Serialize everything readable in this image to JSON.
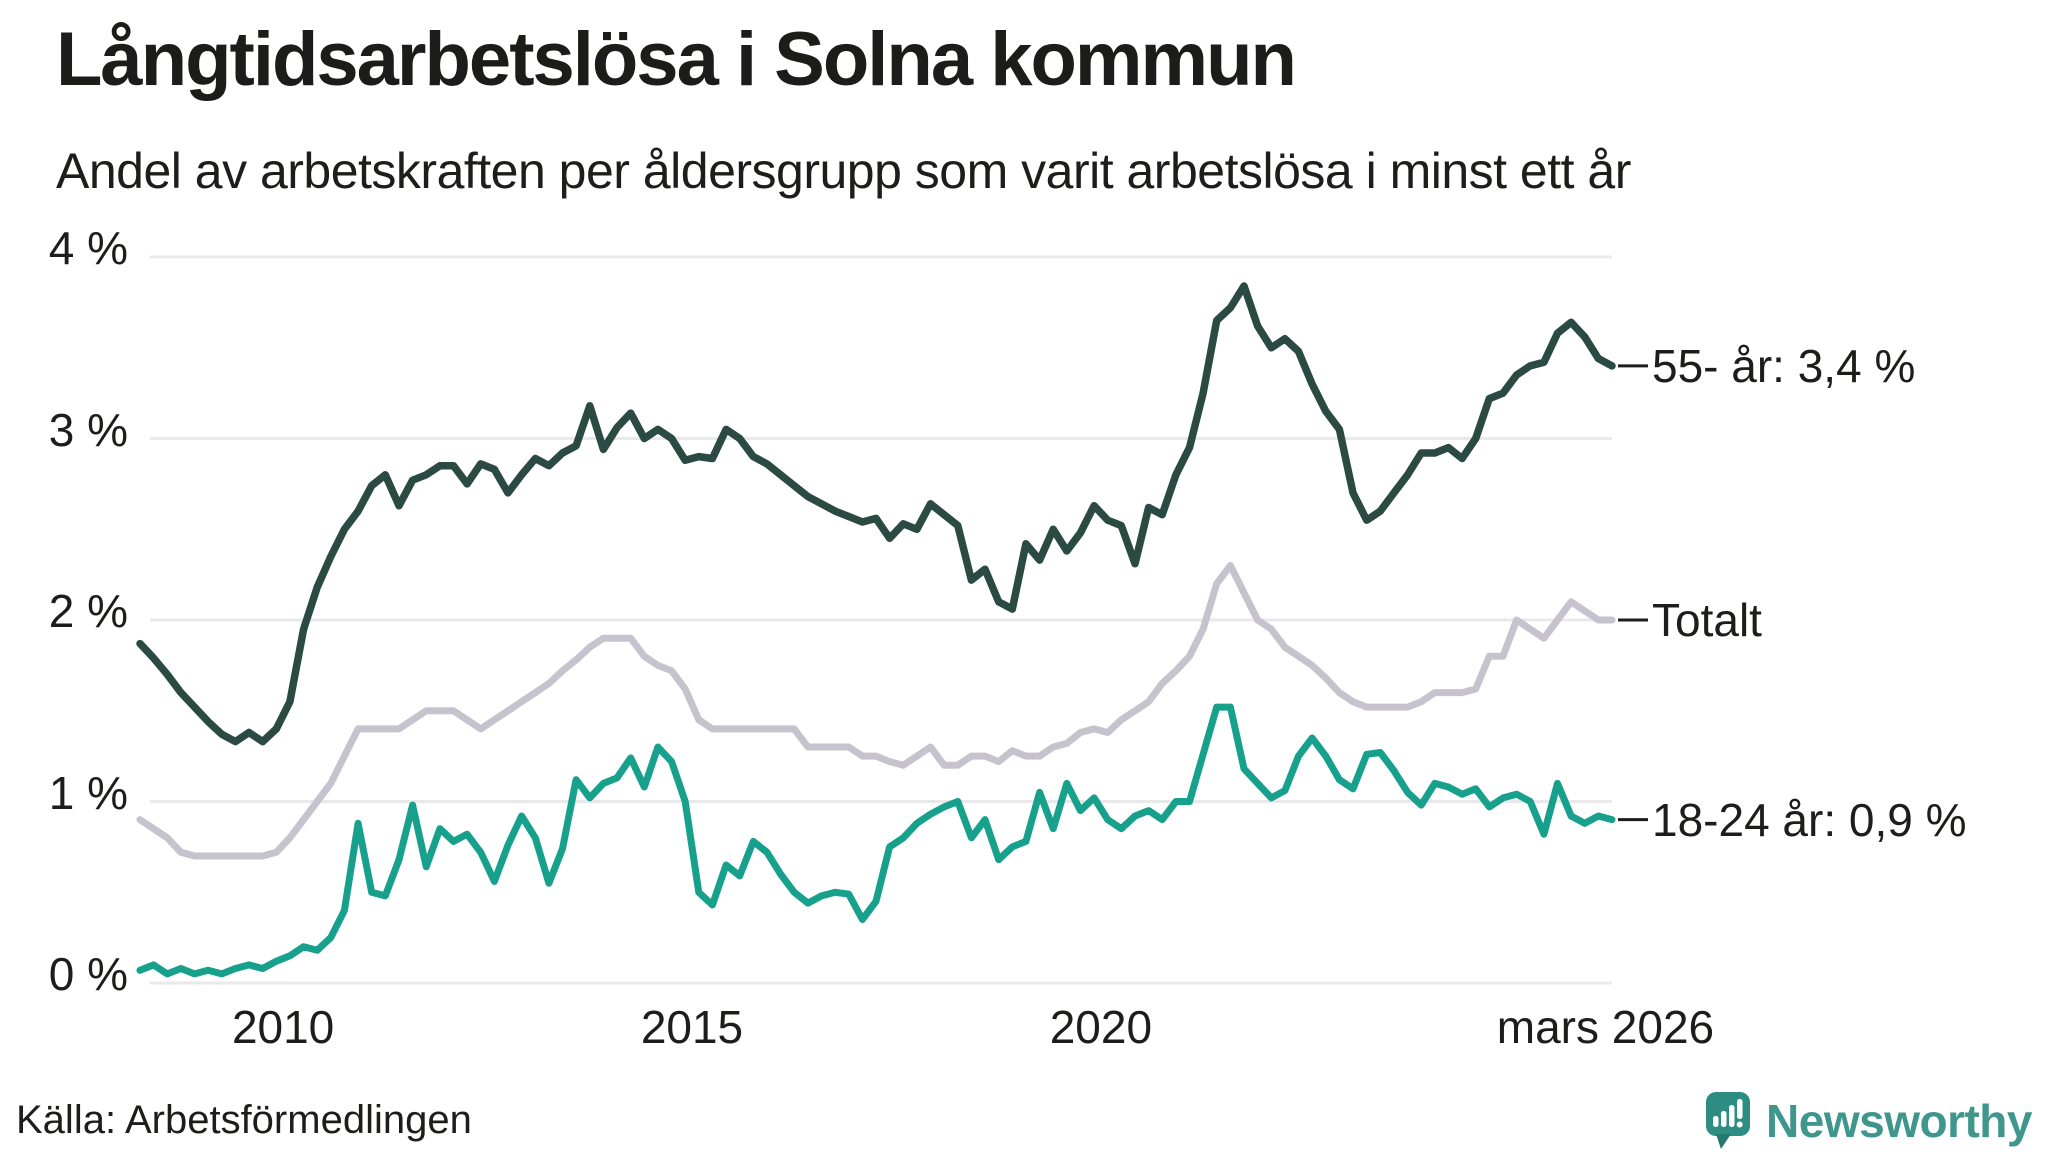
{
  "header": {
    "title": "Långtidsarbetslösa i Solna kommun",
    "subtitle": "Andel av arbetskraften per åldersgrupp som varit arbetslösa i minst ett år"
  },
  "chart_data": {
    "type": "line",
    "title": "Långtidsarbetslösa i Solna kommun",
    "subtitle": "Andel av arbetskraften per åldersgrupp som varit arbetslösa i minst ett år",
    "xlabel": "",
    "ylabel": "",
    "ylim": [
      0,
      4
    ],
    "grid": "horizontal",
    "legend_position": "right-end-labels",
    "x_start": 2008.25,
    "x_step": 0.166667,
    "x_ticks": [
      {
        "year": 2010,
        "label": "2010"
      },
      {
        "year": 2015,
        "label": "2015"
      },
      {
        "year": 2020,
        "label": "2020"
      },
      {
        "year": 2026.17,
        "label": "mars 2026"
      }
    ],
    "y_ticks": [
      {
        "value": 0,
        "label": "0 %"
      },
      {
        "value": 1,
        "label": "1 %"
      },
      {
        "value": 2,
        "label": "2 %"
      },
      {
        "value": 3,
        "label": "3 %"
      },
      {
        "value": 4,
        "label": "4 %"
      }
    ],
    "series": [
      {
        "name": "Totalt",
        "key": "totalt",
        "color": "#c6c3ce",
        "line_width": 7,
        "end_label": "Totalt",
        "end_value": 2.0,
        "values": [
          0.9,
          0.85,
          0.8,
          0.72,
          0.7,
          0.7,
          0.7,
          0.7,
          0.7,
          0.7,
          0.72,
          0.8,
          0.9,
          1.0,
          1.1,
          1.25,
          1.4,
          1.4,
          1.4,
          1.4,
          1.45,
          1.5,
          1.5,
          1.5,
          1.45,
          1.4,
          1.45,
          1.5,
          1.55,
          1.6,
          1.65,
          1.72,
          1.78,
          1.85,
          1.9,
          1.9,
          1.9,
          1.8,
          1.75,
          1.72,
          1.62,
          1.45,
          1.4,
          1.4,
          1.4,
          1.4,
          1.4,
          1.4,
          1.4,
          1.3,
          1.3,
          1.3,
          1.3,
          1.25,
          1.25,
          1.22,
          1.2,
          1.25,
          1.3,
          1.2,
          1.2,
          1.25,
          1.25,
          1.22,
          1.28,
          1.25,
          1.25,
          1.3,
          1.32,
          1.38,
          1.4,
          1.38,
          1.45,
          1.5,
          1.55,
          1.65,
          1.72,
          1.8,
          1.95,
          2.2,
          2.3,
          2.15,
          2.0,
          1.95,
          1.85,
          1.8,
          1.75,
          1.68,
          1.6,
          1.55,
          1.52,
          1.52,
          1.52,
          1.52,
          1.55,
          1.6,
          1.6,
          1.6,
          1.62,
          1.8,
          1.8,
          2.0,
          1.95,
          1.9,
          2.0,
          2.1,
          2.05,
          2.0,
          2.0
        ]
      },
      {
        "name": "55- år",
        "key": "55",
        "color": "#2b4a43",
        "line_width": 7.5,
        "end_label": "55- år: 3,4 %",
        "end_value": 3.4,
        "values": [
          1.87,
          1.79,
          1.7,
          1.6,
          1.52,
          1.44,
          1.37,
          1.33,
          1.38,
          1.33,
          1.4,
          1.55,
          1.95,
          2.18,
          2.35,
          2.5,
          2.6,
          2.74,
          2.8,
          2.63,
          2.77,
          2.8,
          2.85,
          2.85,
          2.75,
          2.86,
          2.83,
          2.7,
          2.8,
          2.89,
          2.85,
          2.92,
          2.96,
          3.18,
          2.94,
          3.06,
          3.14,
          3.0,
          3.05,
          3.0,
          2.88,
          2.9,
          2.89,
          3.05,
          3.0,
          2.9,
          2.86,
          2.8,
          2.74,
          2.68,
          2.64,
          2.6,
          2.57,
          2.54,
          2.56,
          2.45,
          2.53,
          2.5,
          2.64,
          2.58,
          2.52,
          2.22,
          2.28,
          2.1,
          2.06,
          2.42,
          2.33,
          2.5,
          2.38,
          2.48,
          2.63,
          2.55,
          2.52,
          2.31,
          2.62,
          2.58,
          2.8,
          2.95,
          3.25,
          3.65,
          3.72,
          3.84,
          3.62,
          3.5,
          3.55,
          3.48,
          3.3,
          3.15,
          3.05,
          2.7,
          2.55,
          2.6,
          2.7,
          2.8,
          2.92,
          2.92,
          2.95,
          2.89,
          3.0,
          3.22,
          3.25,
          3.35,
          3.4,
          3.42,
          3.58,
          3.64,
          3.56,
          3.44,
          3.4
        ]
      },
      {
        "name": "18-24 år",
        "key": "18-24",
        "color": "#17a18d",
        "line_width": 7,
        "end_label": "18-24 år: 0,9 %",
        "end_value": 0.9,
        "values": [
          0.07,
          0.1,
          0.05,
          0.08,
          0.05,
          0.07,
          0.05,
          0.08,
          0.1,
          0.08,
          0.12,
          0.15,
          0.2,
          0.18,
          0.25,
          0.4,
          0.88,
          0.5,
          0.48,
          0.68,
          0.98,
          0.64,
          0.85,
          0.78,
          0.82,
          0.72,
          0.56,
          0.76,
          0.92,
          0.8,
          0.55,
          0.74,
          1.12,
          1.02,
          1.1,
          1.13,
          1.24,
          1.08,
          1.3,
          1.22,
          1.0,
          0.5,
          0.43,
          0.65,
          0.59,
          0.78,
          0.72,
          0.6,
          0.5,
          0.44,
          0.48,
          0.5,
          0.49,
          0.35,
          0.45,
          0.75,
          0.8,
          0.88,
          0.93,
          0.97,
          1.0,
          0.8,
          0.9,
          0.68,
          0.75,
          0.78,
          1.05,
          0.85,
          1.1,
          0.95,
          1.02,
          0.9,
          0.85,
          0.92,
          0.95,
          0.9,
          1.0,
          1.0,
          1.26,
          1.52,
          1.52,
          1.18,
          1.1,
          1.02,
          1.06,
          1.25,
          1.35,
          1.25,
          1.12,
          1.07,
          1.26,
          1.27,
          1.17,
          1.05,
          0.98,
          1.1,
          1.08,
          1.04,
          1.07,
          0.97,
          1.02,
          1.04,
          1.0,
          0.82,
          1.1,
          0.92,
          0.88,
          0.92,
          0.9
        ]
      }
    ]
  },
  "colors": {
    "background": "#ffffff",
    "grid": "#e9e9ec",
    "text": "#1d1d1b",
    "leader": "#1d1d1b",
    "logo_teal": "#2e8d82",
    "logo_teal_dark": "#227a70",
    "logo_text": "#3f968c"
  },
  "footer": {
    "source": "Källa: Arbetsförmedlingen",
    "logo_text": "Newsworthy"
  }
}
